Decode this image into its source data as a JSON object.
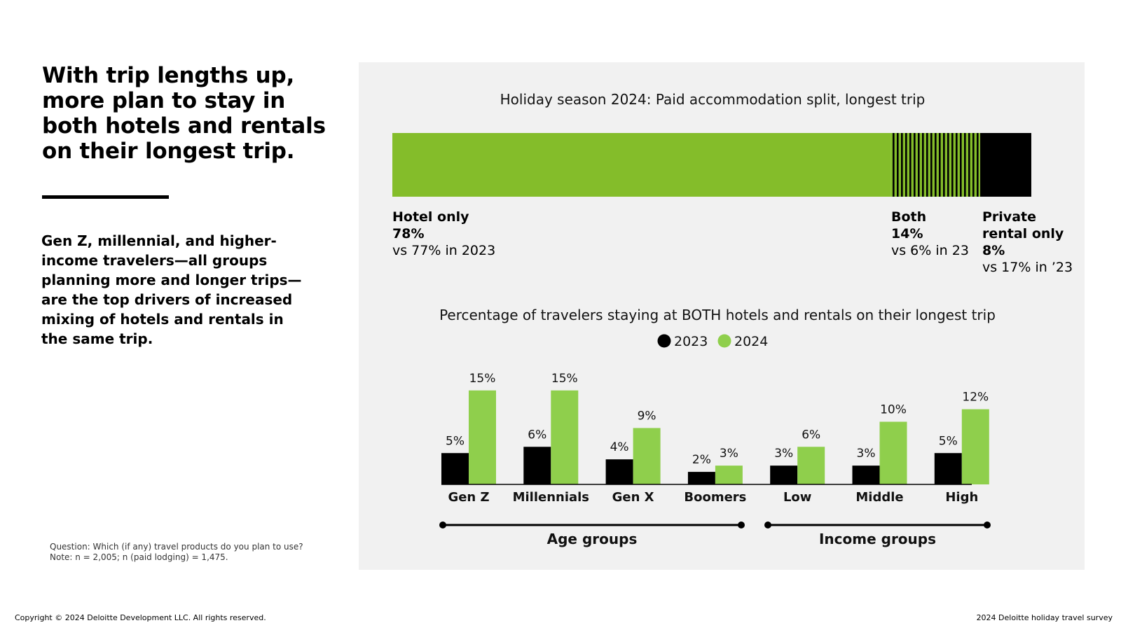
{
  "headline": "With trip lengths up, more plan to stay in both hotels and rentals on their longest trip.",
  "subtext": "Gen Z, millennial, and higher-income travelers—all groups planning more and longer trips—are the top drivers of increased mixing of hotels and rentals in the same trip.",
  "notes": {
    "question": "Question: Which (if any) travel products do you plan to use?",
    "note": "Note: n = 2,005; n (paid lodging) = 1,475."
  },
  "footer": {
    "copyright": "Copyright © 2024 Deloitte Development LLC. All rights reserved.",
    "source": "2024 Deloitte holiday travel survey"
  },
  "split_chart_labels": {
    "hotel": {
      "name": "Hotel only",
      "value": "78%",
      "compare": "vs 77% in 2023"
    },
    "both": {
      "name": "Both",
      "value": "14%",
      "compare": "vs 6% in 23"
    },
    "rental": {
      "name_line1": "Private",
      "name_line2": "rental only",
      "value": "8%",
      "compare": "vs 17% in ’23"
    }
  },
  "colors": {
    "green_dark": "#84bd2a",
    "green_light": "#8fcf4c",
    "black": "#000000",
    "panel": "#f1f1f1"
  },
  "chart_data": [
    {
      "type": "bar",
      "orientation": "horizontal-stacked",
      "title": "Holiday season 2024: Paid accommodation split, longest trip",
      "categories": [
        "Hotel only",
        "Both",
        "Private rental only"
      ],
      "values": [
        78,
        14,
        8
      ],
      "values_2023": [
        77,
        6,
        17
      ],
      "unit": "%"
    },
    {
      "type": "bar",
      "title": "Percentage of travelers staying at BOTH hotels and rentals on their longest trip",
      "categories": [
        "Gen Z",
        "Millennials",
        "Gen X",
        "Boomers",
        "Low",
        "Middle",
        "High"
      ],
      "series": [
        {
          "name": "2023",
          "values": [
            5,
            6,
            4,
            2,
            3,
            3,
            5
          ]
        },
        {
          "name": "2024",
          "values": [
            15,
            15,
            9,
            3,
            6,
            10,
            12
          ]
        }
      ],
      "groups": [
        {
          "name": "Age groups",
          "categories": [
            "Gen Z",
            "Millennials",
            "Gen X",
            "Boomers"
          ]
        },
        {
          "name": "Income groups",
          "categories": [
            "Low",
            "Middle",
            "High"
          ]
        }
      ],
      "unit": "%",
      "ylim": [
        0,
        15
      ]
    }
  ]
}
